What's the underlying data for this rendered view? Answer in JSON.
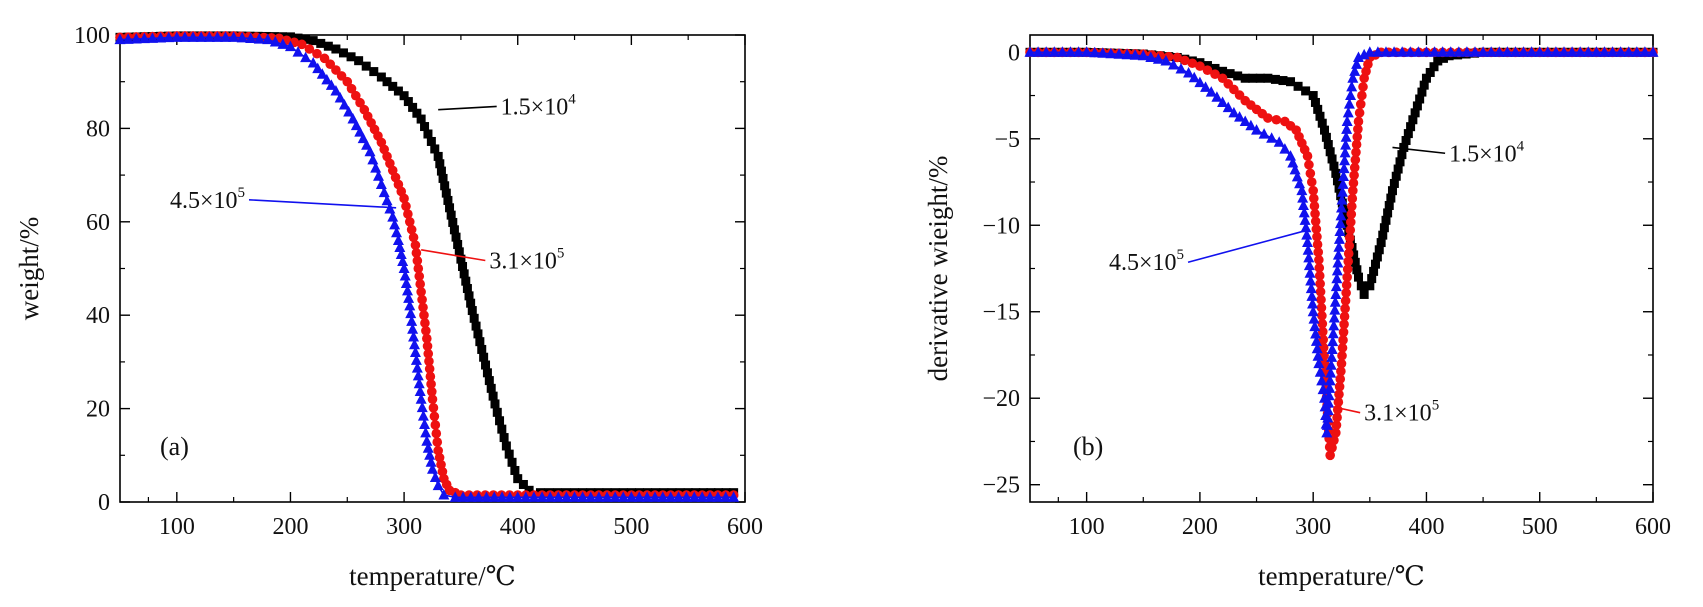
{
  "chart_data": [
    {
      "type": "scatter",
      "panel_label": "(a)",
      "xlabel": "temperature/℃",
      "ylabel": "weight/%",
      "xlim": [
        50,
        600
      ],
      "ylim": [
        0,
        100
      ],
      "xticks": [
        100,
        200,
        300,
        400,
        500,
        600
      ],
      "yticks": [
        0,
        20,
        40,
        60,
        80,
        100
      ],
      "xtick_labels": [
        "100",
        "200",
        "300",
        "400",
        "500",
        "600"
      ],
      "ytick_labels": [
        "0",
        "20",
        "40",
        "60",
        "80",
        "100"
      ],
      "grid": false,
      "series": [
        {
          "name": "1.5×10⁴",
          "mantissa": "1.5×10",
          "exponent": "4",
          "color": "#000000",
          "marker": "square",
          "points": [
            [
              50,
              99.5
            ],
            [
              100,
              99.8
            ],
            [
              150,
              99.8
            ],
            [
              200,
              99.6
            ],
            [
              220,
              98.8
            ],
            [
              240,
              97
            ],
            [
              260,
              94.5
            ],
            [
              280,
              91
            ],
            [
              300,
              87
            ],
            [
              315,
              82
            ],
            [
              330,
              74
            ],
            [
              340,
              63
            ],
            [
              350,
              52
            ],
            [
              360,
              41
            ],
            [
              370,
              31
            ],
            [
              380,
              21
            ],
            [
              390,
              12
            ],
            [
              400,
              5
            ],
            [
              410,
              2.5
            ],
            [
              420,
              2
            ],
            [
              450,
              2
            ],
            [
              500,
              2
            ],
            [
              550,
              2
            ],
            [
              590,
              2
            ]
          ]
        },
        {
          "name": "3.1×10⁵",
          "mantissa": "3.1×10",
          "exponent": "5",
          "color": "#ee1111",
          "marker": "circle",
          "points": [
            [
              50,
              99.5
            ],
            [
              100,
              99.8
            ],
            [
              150,
              99.8
            ],
            [
              190,
              99.3
            ],
            [
              210,
              98
            ],
            [
              230,
              95
            ],
            [
              250,
              90
            ],
            [
              265,
              84
            ],
            [
              280,
              77
            ],
            [
              290,
              71
            ],
            [
              300,
              65
            ],
            [
              305,
              60
            ],
            [
              310,
              55
            ],
            [
              315,
              45
            ],
            [
              320,
              35
            ],
            [
              325,
              22
            ],
            [
              330,
              11
            ],
            [
              335,
              5
            ],
            [
              340,
              2.5
            ],
            [
              350,
              1.5
            ],
            [
              400,
              1.5
            ],
            [
              500,
              1.5
            ],
            [
              590,
              1.5
            ]
          ]
        },
        {
          "name": "4.5×10⁵",
          "mantissa": "4.5×10",
          "exponent": "5",
          "color": "#1111ee",
          "marker": "triangle",
          "points": [
            [
              50,
              99
            ],
            [
              100,
              99.5
            ],
            [
              150,
              99.5
            ],
            [
              180,
              99
            ],
            [
              200,
              97.5
            ],
            [
              220,
              94
            ],
            [
              240,
              88
            ],
            [
              255,
              82
            ],
            [
              270,
              75
            ],
            [
              280,
              68
            ],
            [
              290,
              61
            ],
            [
              295,
              56
            ],
            [
              300,
              50
            ],
            [
              305,
              42
            ],
            [
              310,
              32
            ],
            [
              315,
              22
            ],
            [
              320,
              13
            ],
            [
              325,
              7
            ],
            [
              330,
              3.5
            ],
            [
              335,
              1.5
            ],
            [
              345,
              1
            ],
            [
              400,
              1
            ],
            [
              500,
              1
            ],
            [
              590,
              1
            ]
          ]
        }
      ],
      "annotations": [
        {
          "series": 0,
          "mantissa": "1.5×10",
          "exponent": "4",
          "at": [
            330,
            84
          ],
          "text_at": [
            385,
            83
          ]
        },
        {
          "series": 1,
          "mantissa": "3.1×10",
          "exponent": "5",
          "at": [
            315,
            54
          ],
          "text_at": [
            375,
            50
          ]
        },
        {
          "series": 2,
          "mantissa": "4.5×10",
          "exponent": "5",
          "at": [
            293,
            63
          ],
          "text_at": [
            160,
            63
          ]
        }
      ]
    },
    {
      "type": "scatter",
      "panel_label": "(b)",
      "xlabel": "temperature/℃",
      "ylabel": "derivative wieight/%",
      "xlim": [
        50,
        600
      ],
      "ylim": [
        -26,
        1
      ],
      "xticks": [
        100,
        200,
        300,
        400,
        500,
        600
      ],
      "yticks": [
        0,
        -5,
        -10,
        -15,
        -20,
        -25
      ],
      "xtick_labels": [
        "100",
        "200",
        "300",
        "400",
        "500",
        "600"
      ],
      "ytick_labels": [
        "0",
        "−5",
        "−10",
        "−15",
        "−20",
        "−25"
      ],
      "grid": false,
      "series": [
        {
          "name": "1.5×10⁴",
          "mantissa": "1.5×10",
          "exponent": "4",
          "color": "#000000",
          "marker": "square",
          "points": [
            [
              50,
              0
            ],
            [
              100,
              0
            ],
            [
              150,
              -0.1
            ],
            [
              180,
              -0.3
            ],
            [
              200,
              -0.6
            ],
            [
              220,
              -1.1
            ],
            [
              240,
              -1.5
            ],
            [
              260,
              -1.5
            ],
            [
              280,
              -1.7
            ],
            [
              300,
              -2.5
            ],
            [
              310,
              -4.5
            ],
            [
              320,
              -7
            ],
            [
              330,
              -10
            ],
            [
              340,
              -13
            ],
            [
              345,
              -14
            ],
            [
              350,
              -13.5
            ],
            [
              360,
              -11
            ],
            [
              370,
              -8
            ],
            [
              380,
              -5.5
            ],
            [
              390,
              -3.5
            ],
            [
              400,
              -1.5
            ],
            [
              410,
              -0.5
            ],
            [
              420,
              -0.2
            ],
            [
              450,
              0
            ],
            [
              500,
              0
            ],
            [
              550,
              0
            ],
            [
              600,
              0
            ]
          ]
        },
        {
          "name": "3.1×10⁵",
          "mantissa": "3.1×10",
          "exponent": "5",
          "color": "#ee1111",
          "marker": "circle",
          "points": [
            [
              50,
              0
            ],
            [
              100,
              0
            ],
            [
              150,
              -0.1
            ],
            [
              180,
              -0.3
            ],
            [
              200,
              -0.8
            ],
            [
              220,
              -1.5
            ],
            [
              240,
              -2.8
            ],
            [
              260,
              -3.8
            ],
            [
              275,
              -4
            ],
            [
              285,
              -4.5
            ],
            [
              295,
              -6
            ],
            [
              300,
              -8
            ],
            [
              305,
              -12
            ],
            [
              310,
              -18
            ],
            [
              315,
              -23.3
            ],
            [
              320,
              -22
            ],
            [
              325,
              -18
            ],
            [
              330,
              -13
            ],
            [
              335,
              -8
            ],
            [
              340,
              -4
            ],
            [
              345,
              -1.5
            ],
            [
              350,
              -0.3
            ],
            [
              360,
              0
            ],
            [
              400,
              0
            ],
            [
              500,
              0
            ],
            [
              600,
              0
            ]
          ]
        },
        {
          "name": "4.5×10⁵",
          "mantissa": "4.5×10",
          "exponent": "5",
          "color": "#1111ee",
          "marker": "triangle",
          "points": [
            [
              50,
              0
            ],
            [
              100,
              0
            ],
            [
              150,
              -0.2
            ],
            [
              170,
              -0.5
            ],
            [
              190,
              -1.2
            ],
            [
              210,
              -2.3
            ],
            [
              230,
              -3.5
            ],
            [
              250,
              -4.5
            ],
            [
              270,
              -5.2
            ],
            [
              280,
              -6
            ],
            [
              290,
              -8
            ],
            [
              295,
              -11
            ],
            [
              300,
              -15
            ],
            [
              305,
              -18
            ],
            [
              310,
              -20
            ],
            [
              312,
              -22
            ],
            [
              315,
              -19
            ],
            [
              320,
              -14
            ],
            [
              325,
              -9
            ],
            [
              330,
              -4
            ],
            [
              335,
              -1.5
            ],
            [
              340,
              -0.3
            ],
            [
              350,
              0
            ],
            [
              400,
              0
            ],
            [
              500,
              0
            ],
            [
              600,
              0
            ]
          ]
        }
      ],
      "annotations": [
        {
          "series": 0,
          "mantissa": "1.5×10",
          "exponent": "4",
          "at": [
            370,
            -5.5
          ],
          "text_at": [
            420,
            -6.3
          ]
        },
        {
          "series": 1,
          "mantissa": "3.1×10",
          "exponent": "5",
          "at": [
            318,
            -20.5
          ],
          "text_at": [
            345,
            -21.3
          ]
        },
        {
          "series": 2,
          "mantissa": "4.5×10",
          "exponent": "5",
          "at": [
            294,
            -10.3
          ],
          "text_at": [
            186,
            -12.6
          ]
        }
      ]
    }
  ]
}
